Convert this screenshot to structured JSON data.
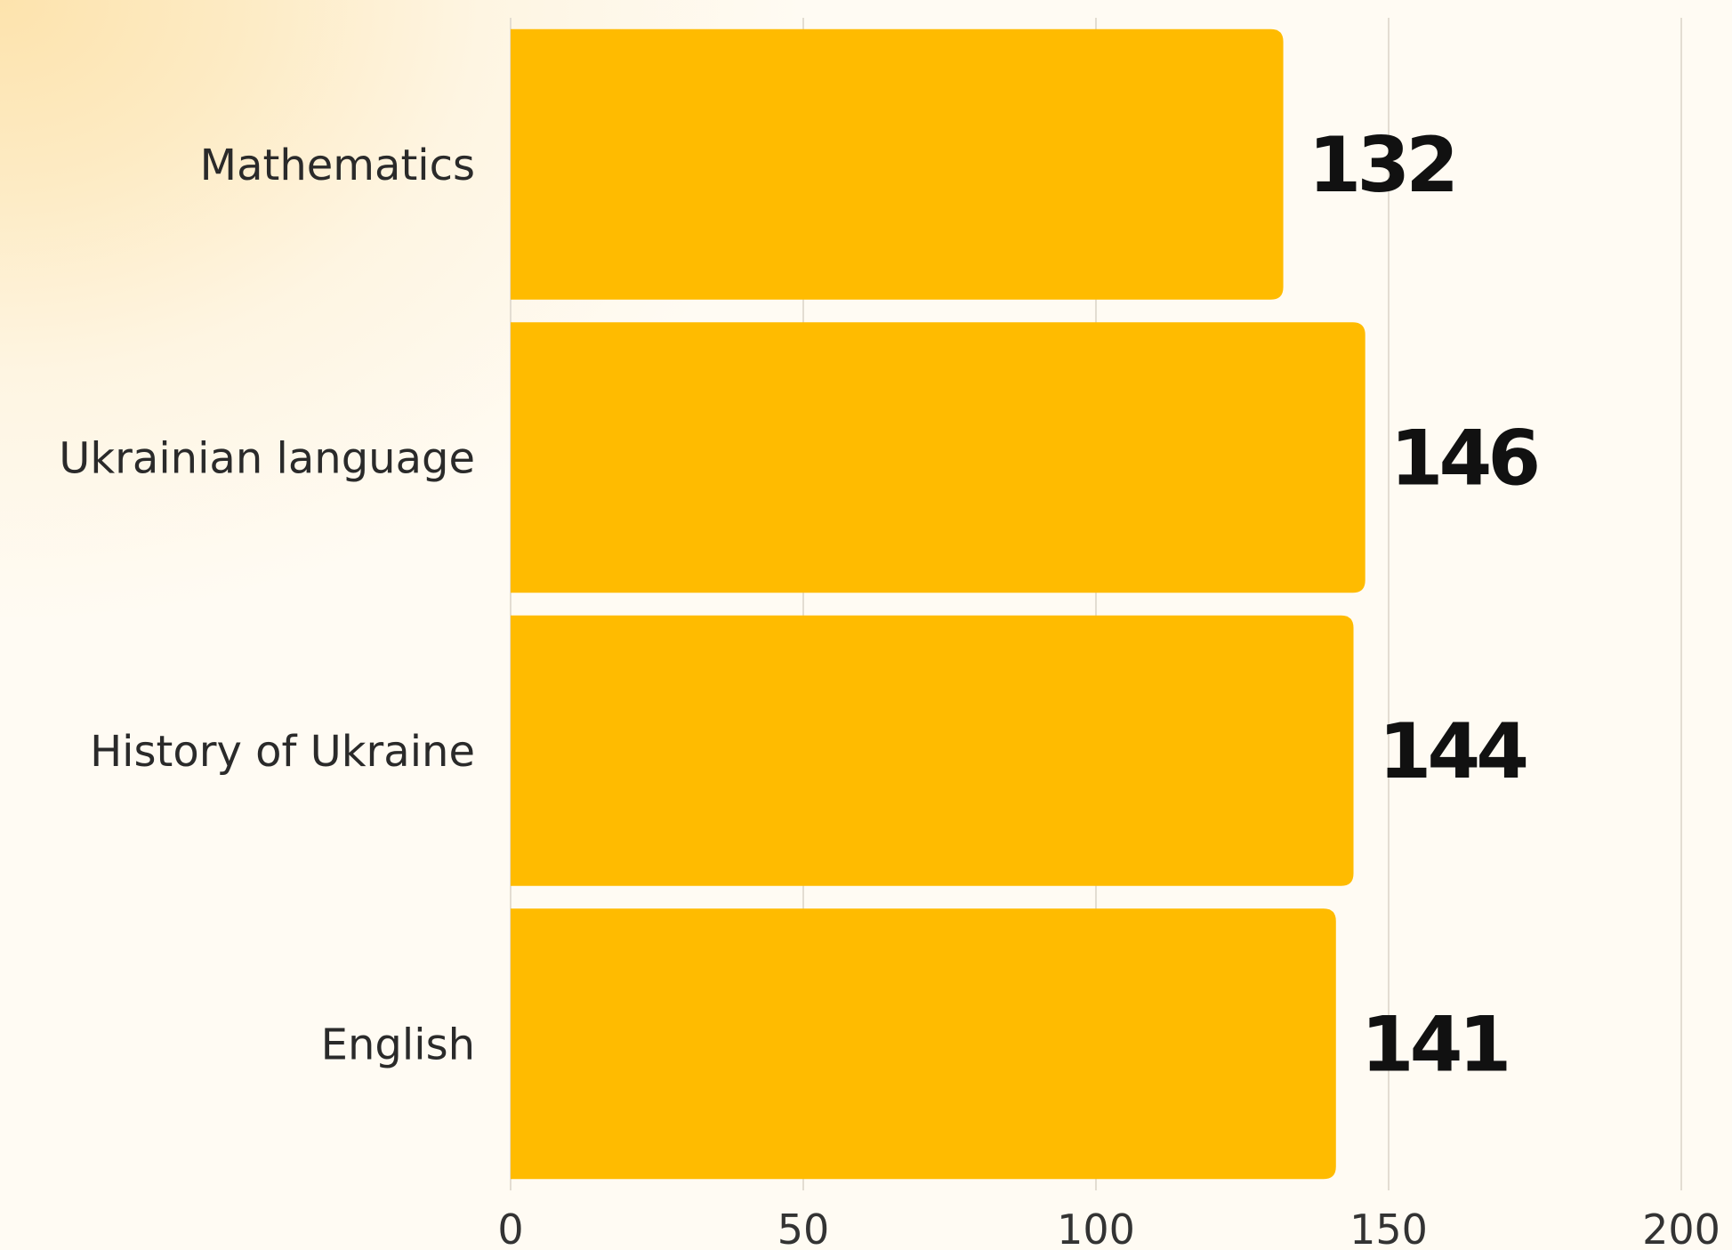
{
  "chart_data": {
    "type": "bar",
    "orientation": "horizontal",
    "categories": [
      "Mathematics",
      "Ukrainian language",
      "History of Ukraine",
      "English"
    ],
    "values": [
      132,
      146,
      144,
      141
    ],
    "xlim": [
      0,
      200
    ],
    "xticks": [
      "0",
      "50",
      "100",
      "150",
      "200"
    ],
    "title": "",
    "xlabel": "",
    "ylabel": "",
    "grid": "vertical",
    "legend": "none",
    "bar_color": "#ffbb00",
    "grid_color": "#e3ddd2",
    "value_label_color": "#111111"
  }
}
